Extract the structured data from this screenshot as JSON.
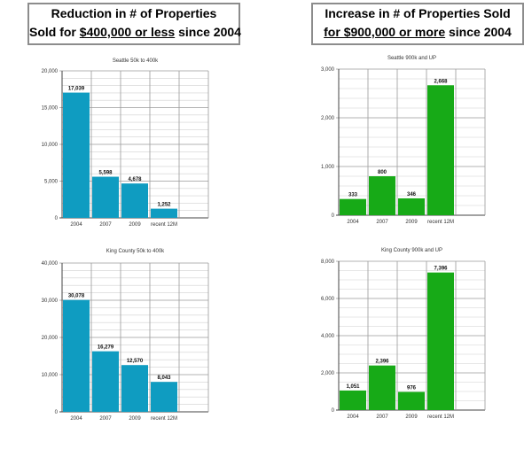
{
  "headers": {
    "left": {
      "line1": "Reduction in # of Properties",
      "line2_pre": "Sold for ",
      "line2_underlined": "$400,000 or less",
      "line2_post": " since 2004"
    },
    "right": {
      "line1": "Increase in # of Properties Sold",
      "line2_pre": "",
      "line2_underlined": "for $900,000 or more",
      "line2_post": " since 2004"
    }
  },
  "colors": {
    "blue_bar": "#0f9cc1",
    "green_bar": "#17aa17",
    "grid": "#9a9a9a",
    "axis": "#444444"
  },
  "chart_data": [
    {
      "type": "bar",
      "title": "Seattle 50k to 400k",
      "categories": [
        "2004",
        "2007",
        "2009",
        "recent 12M"
      ],
      "values": [
        17039,
        5598,
        4678,
        1252
      ],
      "value_labels": [
        "17,039",
        "5,598",
        "4,678",
        "1,252"
      ],
      "ylim": [
        0,
        20000
      ],
      "major_ticks": [
        0,
        5000,
        10000,
        15000,
        20000
      ],
      "major_tick_labels": [
        "0",
        "5,000",
        "10,000",
        "15,000",
        "20,000"
      ],
      "minor_step": 1000,
      "slots": 5,
      "grid": true,
      "xlabel": "",
      "ylabel": "",
      "color": "#0f9cc1"
    },
    {
      "type": "bar",
      "title": "Seattle 900k and UP",
      "categories": [
        "2004",
        "2007",
        "2009",
        "recent 12M"
      ],
      "values": [
        333,
        800,
        346,
        2668
      ],
      "value_labels": [
        "333",
        "800",
        "346",
        "2,668"
      ],
      "ylim": [
        0,
        3000
      ],
      "major_ticks": [
        0,
        1000,
        2000,
        3000
      ],
      "major_tick_labels": [
        "0",
        "1,000",
        "2,000",
        "3,000"
      ],
      "minor_step": 200,
      "slots": 5,
      "grid": true,
      "xlabel": "",
      "ylabel": "",
      "color": "#17aa17"
    },
    {
      "type": "bar",
      "title": "King County 50k to 400k",
      "categories": [
        "2004",
        "2007",
        "2009",
        "recent 12M"
      ],
      "values": [
        30078,
        16279,
        12570,
        8043
      ],
      "value_labels": [
        "30,078",
        "16,279",
        "12,570",
        "8,043"
      ],
      "ylim": [
        0,
        40000
      ],
      "major_ticks": [
        0,
        10000,
        20000,
        30000,
        40000
      ],
      "major_tick_labels": [
        "0",
        "10,000",
        "20,000",
        "30,000",
        "40,000"
      ],
      "minor_step": 2000,
      "slots": 5,
      "grid": true,
      "xlabel": "",
      "ylabel": "",
      "color": "#0f9cc1"
    },
    {
      "type": "bar",
      "title": "King County 900k and UP",
      "categories": [
        "2004",
        "2007",
        "2009",
        "recent 12M"
      ],
      "values": [
        1051,
        2396,
        976,
        7396
      ],
      "value_labels": [
        "1,051",
        "2,396",
        "976",
        "7,396"
      ],
      "ylim": [
        0,
        8000
      ],
      "major_ticks": [
        0,
        2000,
        4000,
        6000,
        8000
      ],
      "major_tick_labels": [
        "0",
        "2,000",
        "4,000",
        "6,000",
        "8,000"
      ],
      "minor_step": 500,
      "slots": 5,
      "grid": true,
      "xlabel": "",
      "ylabel": "",
      "color": "#17aa17"
    }
  ]
}
